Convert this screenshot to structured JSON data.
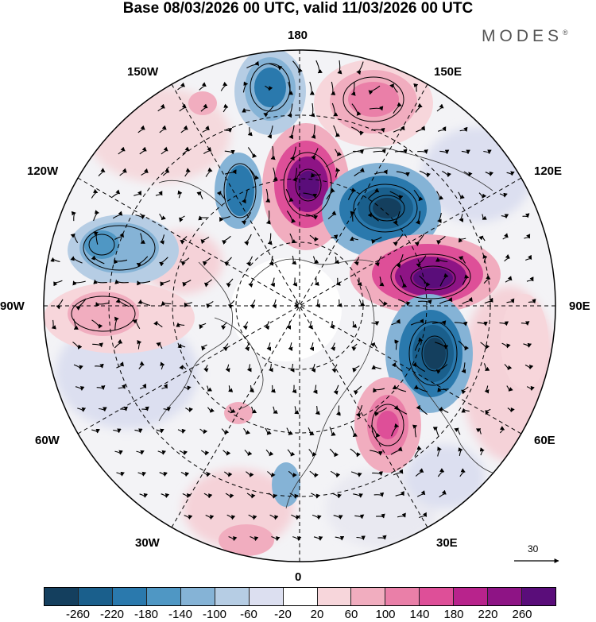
{
  "title": "Base 08/03/2026 00 UTC, valid 11/03/2026 00 UTC",
  "logo": "MODES",
  "logo_mark": "®",
  "lon_labels": {
    "l180": "180",
    "l150e": "150E",
    "l120e": "120E",
    "l90e": "90E",
    "l60e": "60E",
    "l30e": "30E",
    "l0": "0",
    "l30w": "30W",
    "l60w": "60W",
    "l90w": "90W",
    "l120w": "120W",
    "l150w": "150W"
  },
  "vector_ref": "30",
  "colorbar": {
    "colors": [
      "#143f5e",
      "#1a5f8c",
      "#2a79ad",
      "#4f97c4",
      "#85b3d6",
      "#b6cde4",
      "#dcdff0",
      "#ffffff",
      "#f7d6db",
      "#f1adbf",
      "#ea7fa8",
      "#de4f98",
      "#b8238c",
      "#8e1485",
      "#5a0d7a"
    ],
    "ticks": [
      "-260",
      "-220",
      "-180",
      "-140",
      "-100",
      "-60",
      "-20",
      "20",
      "60",
      "100",
      "140",
      "180",
      "220",
      "260"
    ]
  },
  "anomalies": [
    {
      "name": "low-pacific-north",
      "value": -180
    },
    {
      "name": "high-east-siberia",
      "value": 260
    },
    {
      "name": "low-siberia",
      "value": -260
    },
    {
      "name": "high-west-siberia",
      "value": 260
    },
    {
      "name": "low-ural",
      "value": -260
    },
    {
      "name": "high-scandinavia",
      "value": 180
    },
    {
      "name": "low-alaska",
      "value": -180
    },
    {
      "name": "low-canada",
      "value": -180
    },
    {
      "name": "high-bering",
      "value": 140
    },
    {
      "name": "high-greenland-west",
      "value": 100
    }
  ]
}
